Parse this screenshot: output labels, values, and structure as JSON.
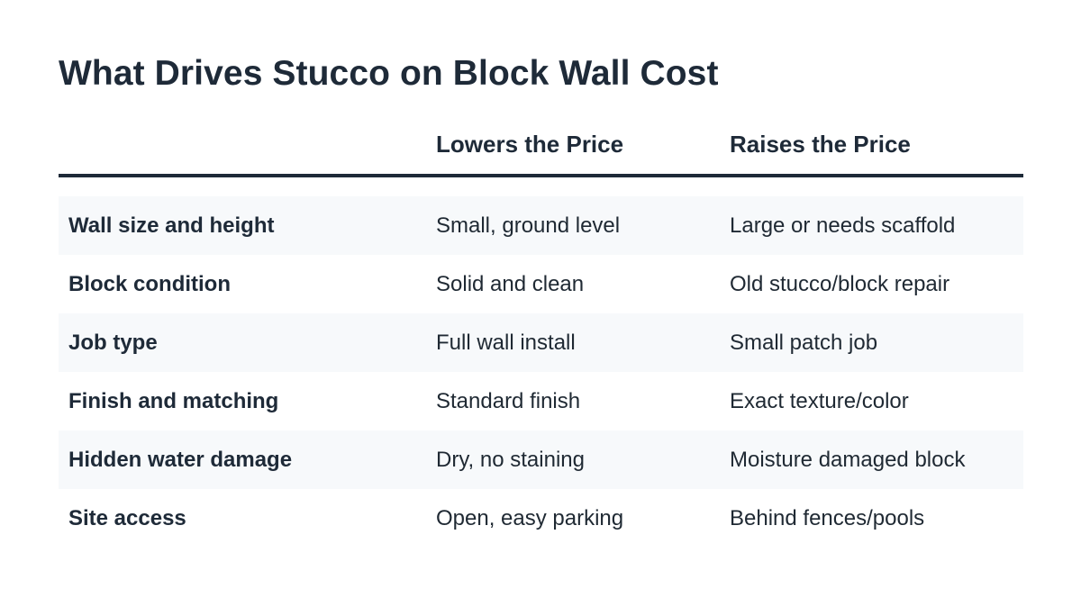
{
  "title": "What Drives Stucco on Block Wall Cost",
  "table": {
    "headers": [
      "",
      "Lowers the Price",
      "Raises the Price"
    ],
    "rows": [
      {
        "factor": "Wall size and height",
        "lowers": "Small, ground level",
        "raises": "Large or needs scaffold"
      },
      {
        "factor": "Block condition",
        "lowers": "Solid and clean",
        "raises": "Old stucco/block repair"
      },
      {
        "factor": "Job type",
        "lowers": "Full wall install",
        "raises": "Small patch job"
      },
      {
        "factor": "Finish and matching",
        "lowers": "Standard finish",
        "raises": "Exact texture/color"
      },
      {
        "factor": "Hidden water damage",
        "lowers": "Dry, no staining",
        "raises": "Moisture damaged block"
      },
      {
        "factor": "Site access",
        "lowers": "Open, easy parking",
        "raises": "Behind fences/pools"
      }
    ]
  },
  "colors": {
    "text": "#1e2a38",
    "row_shade": "#f7f9fb",
    "rule": "#1e2a38"
  }
}
